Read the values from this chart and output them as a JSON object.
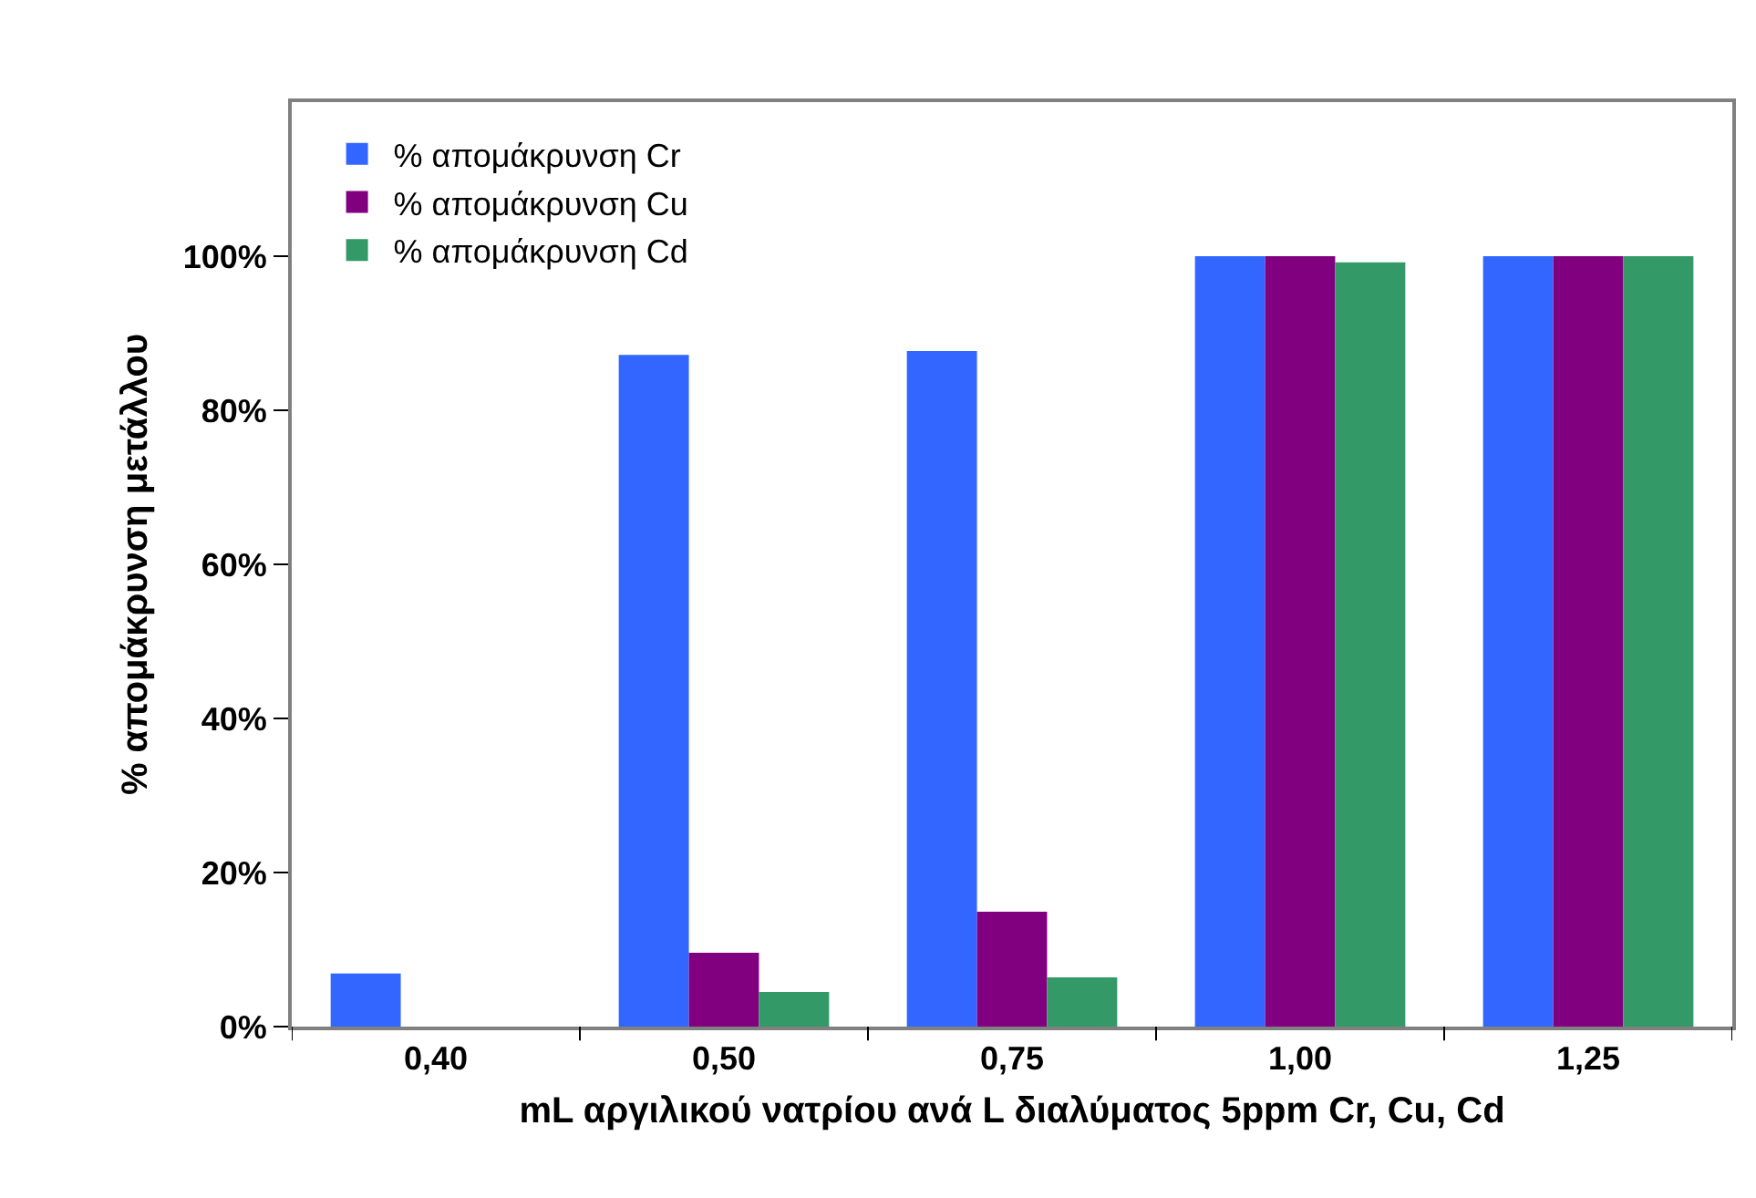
{
  "chart_data": {
    "type": "bar",
    "xlabel": "mL αργιλικού νατρίου ανά L διαλύματος 5ppm Cr, Cu, Cd",
    "ylabel": "% απομάκρυνση μετάλλου",
    "categories": [
      "0,40",
      "0,50",
      "0,75",
      "1,00",
      "1,25"
    ],
    "series": [
      {
        "name": "% απομάκρυνση Cr",
        "color": "#3366ff",
        "values": [
          0.069,
          0.872,
          0.877,
          1.0,
          1.0
        ]
      },
      {
        "name": "% απομάκρυνση Cu",
        "color": "#800080",
        "values": [
          0.0,
          0.096,
          0.149,
          1.0,
          1.0
        ]
      },
      {
        "name": "% απομάκρυνση Cd",
        "color": "#339966",
        "values": [
          0.0,
          0.045,
          0.064,
          0.992,
          1.0
        ]
      }
    ],
    "ylim": [
      0,
      1.2
    ],
    "yticks": [
      {
        "value": 0,
        "label": "0%"
      },
      {
        "value": 0.2,
        "label": "20%"
      },
      {
        "value": 0.4,
        "label": "40%"
      },
      {
        "value": 0.6,
        "label": "60%"
      },
      {
        "value": 0.8,
        "label": "80%"
      },
      {
        "value": 1.0,
        "label": "100%"
      }
    ],
    "grid": false,
    "legend": "top left"
  }
}
